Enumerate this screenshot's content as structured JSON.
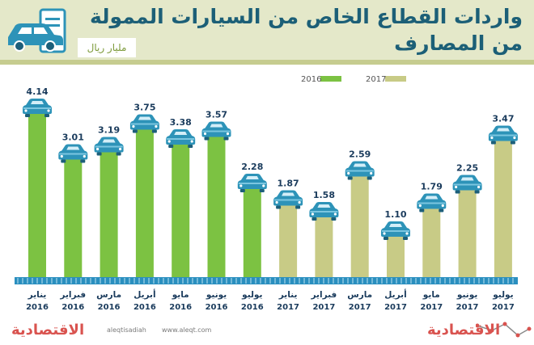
{
  "header": {
    "title_line1": "واردات القطاع الخاص من السيارات الممولة",
    "title_line2": "من المصارف",
    "unit": "مليار ريال"
  },
  "colors": {
    "y2016": "#7cc242",
    "y2017": "#c8cb86",
    "car": "#2d93b8",
    "axis": "#2a8fbf",
    "label": "#1a3b5c"
  },
  "footer": {
    "brand": "الاقتصادية",
    "twitter": "aleqtisadiah",
    "website": "www.aleqt.com"
  },
  "chart_data": {
    "type": "bar",
    "categories": [
      {
        "month": "يناير",
        "year": "2016"
      },
      {
        "month": "فبراير",
        "year": "2016"
      },
      {
        "month": "مارس",
        "year": "2016"
      },
      {
        "month": "أبريل",
        "year": "2016"
      },
      {
        "month": "مايو",
        "year": "2016"
      },
      {
        "month": "يونيو",
        "year": "2016"
      },
      {
        "month": "يوليو",
        "year": "2016"
      },
      {
        "month": "يناير",
        "year": "2017"
      },
      {
        "month": "فبراير",
        "year": "2017"
      },
      {
        "month": "مارس",
        "year": "2017"
      },
      {
        "month": "أبريل",
        "year": "2017"
      },
      {
        "month": "مايو",
        "year": "2017"
      },
      {
        "month": "يونيو",
        "year": "2017"
      },
      {
        "month": "يوليو",
        "year": "2017"
      }
    ],
    "values": [
      4.14,
      3.01,
      3.19,
      3.75,
      3.38,
      3.57,
      2.28,
      1.87,
      1.58,
      2.59,
      1.1,
      1.79,
      2.25,
      3.47
    ],
    "value_labels": [
      "4.14",
      "3.01",
      "3.19",
      "3.75",
      "3.38",
      "3.57",
      "2.28",
      "1.87",
      "1.58",
      "2.59",
      "1.10",
      "1.79",
      "2.25",
      "3.47"
    ],
    "series_year": [
      "2016",
      "2016",
      "2016",
      "2016",
      "2016",
      "2016",
      "2016",
      "2017",
      "2017",
      "2017",
      "2017",
      "2017",
      "2017",
      "2017"
    ],
    "legend": [
      {
        "name": "2016",
        "color": "#7cc242"
      },
      {
        "name": "2017",
        "color": "#c8cb86"
      }
    ],
    "ylim": [
      0,
      4.5
    ]
  }
}
